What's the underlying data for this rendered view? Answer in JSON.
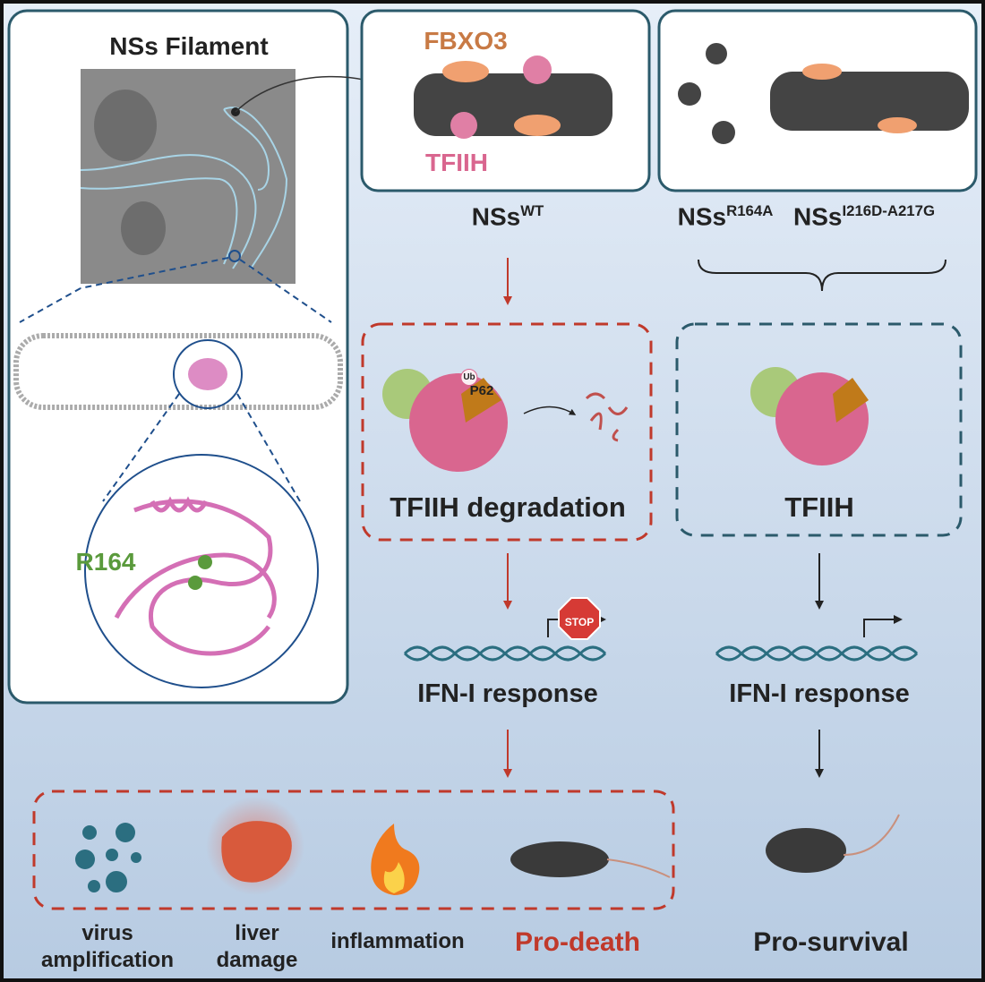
{
  "left_panel": {
    "title": "NSs Filament",
    "residue_label": "R164"
  },
  "wt_panel": {
    "fbxo3_label": "FBXO3",
    "tfiih_label": "TFIIH",
    "caption_base": "NSs",
    "caption_sup": "WT"
  },
  "mutant_panel": {
    "mutants": [
      {
        "base": "NSs",
        "sup": "R164A"
      },
      {
        "base": "NSs",
        "sup": "I216D-A217G"
      }
    ]
  },
  "degradation_box": {
    "title": "TFIIH degradation",
    "p62_label": "P62",
    "ub_label": "Ub"
  },
  "intact_box": {
    "title": "TFIIH"
  },
  "stop_sign": "STOP",
  "response_left": "IFN-I response",
  "response_right": "IFN-I response",
  "outcomes": {
    "virus": [
      "virus",
      "amplification"
    ],
    "liver": [
      "liver",
      "damage"
    ],
    "inflammation": "inflammation",
    "pro_death": "Pro-death",
    "pro_survival": "Pro-survival"
  },
  "colors": {
    "frame": "#2b5a6b",
    "red_dash": "#c0392b",
    "teal_dash": "#2b5a6b",
    "fbxo3": "#c87a45",
    "tfiih": "#d9668f",
    "r164": "#5a9a3c",
    "pro_death": "#c0392b"
  }
}
